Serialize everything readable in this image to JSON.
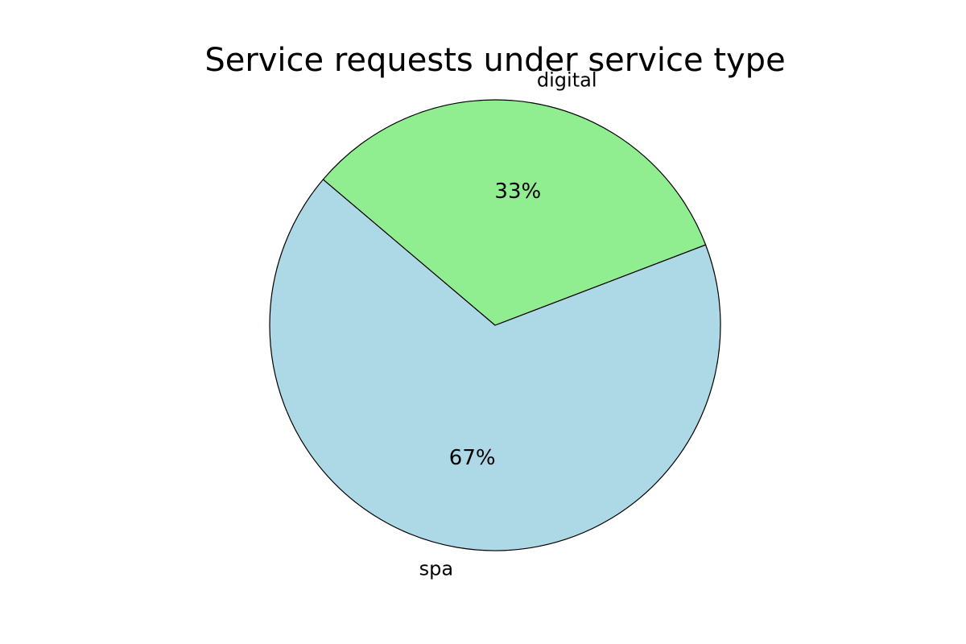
{
  "chart_data": {
    "type": "pie",
    "title": "Service requests under service type",
    "categories": [
      "spa",
      "digital"
    ],
    "values": [
      67,
      33
    ],
    "percent_labels": [
      "67%",
      "33%"
    ],
    "colors": [
      "#add8e6",
      "#90ee90"
    ],
    "start_angle_deg": 139.7,
    "direction": "counterclockwise",
    "legend": "none"
  }
}
